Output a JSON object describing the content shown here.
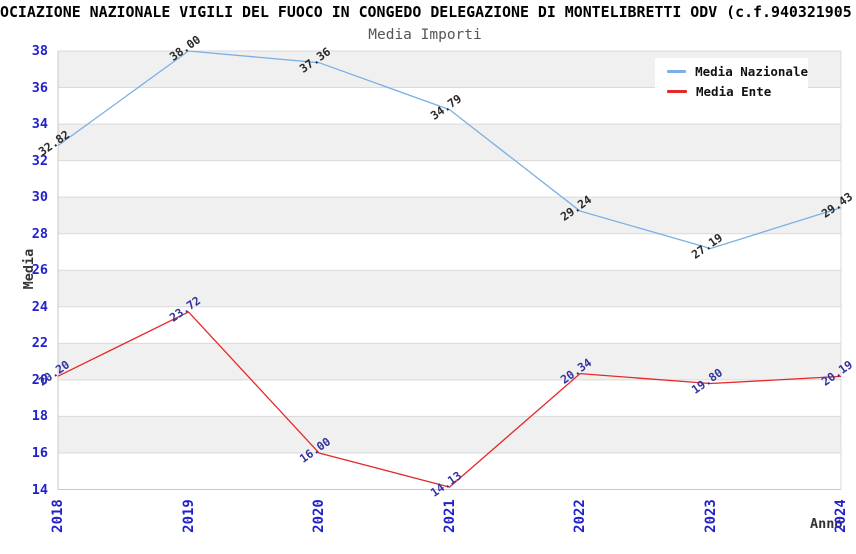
{
  "chart_data": {
    "type": "line",
    "title": "OCIAZIONE NAZIONALE VIGILI DEL FUOCO IN CONGEDO DELEGAZIONE DI MONTELIBRETTI ODV (c.f.940321905",
    "subtitle": "Media Importi",
    "xlabel": "Anno",
    "ylabel": "Media",
    "categories": [
      "2018",
      "2019",
      "2020",
      "2021",
      "2022",
      "2023",
      "2024"
    ],
    "ylim": [
      14,
      38
    ],
    "ytick_step": 2,
    "grid": "horizontal gridlines with alternating gray/white bands",
    "legend_position": "top-right",
    "series": [
      {
        "name": "Media Nazionale",
        "color": "#7cb0e4",
        "label_color": "#2a2a2a",
        "values": [
          32.82,
          38.0,
          37.36,
          34.79,
          29.24,
          27.19,
          29.43
        ],
        "labels": [
          "32.82",
          "38.00",
          "37.36",
          "34.79",
          "29.24",
          "27.19",
          "29.43"
        ]
      },
      {
        "name": "Media Ente",
        "color": "#e62828",
        "label_color": "#3434a0",
        "values": [
          20.2,
          23.72,
          16.0,
          14.13,
          20.34,
          19.8,
          20.19
        ],
        "labels": [
          "20.20",
          "23.72",
          "16.00",
          "14.13",
          "20.34",
          "19.80",
          "20.19"
        ]
      }
    ],
    "colors": {
      "band_gray": "#f0f0f0",
      "band_white": "#ffffff",
      "grid_line": "#dadada",
      "axis_frame": "#c8c8c8",
      "tick_label": "#2222cc",
      "axis_title": "#333333",
      "title_text": "#000000",
      "subtitle_text": "#555555",
      "legend_bg": "#ffffff"
    }
  }
}
